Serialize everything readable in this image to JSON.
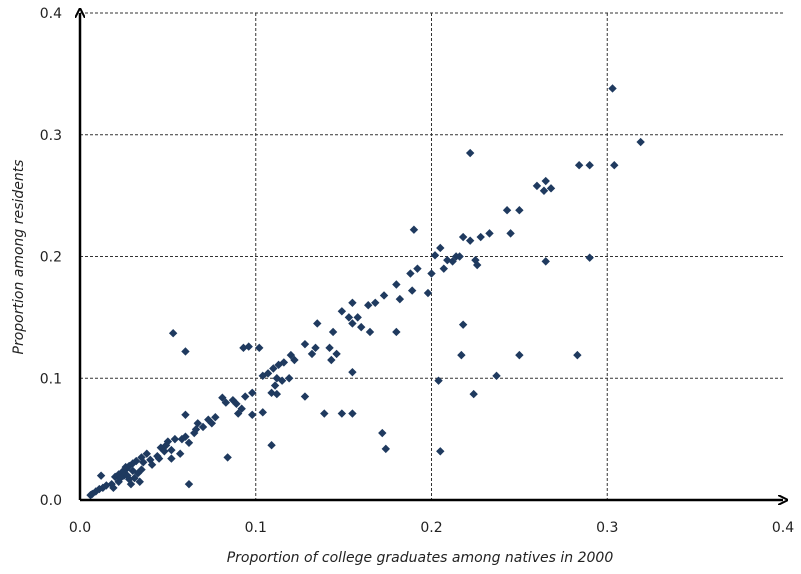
{
  "chart_data": {
    "type": "scatter",
    "title": "",
    "xlabel": "Proportion of college graduates among natives in 2000",
    "ylabel": "Proportion among residents",
    "xlim": [
      0,
      0.4
    ],
    "ylim": [
      0,
      0.4
    ],
    "x_ticks": [
      "0.0",
      "0.1",
      "0.2",
      "0.3",
      "0.4"
    ],
    "y_ticks": [
      "0.0",
      "0.1",
      "0.2",
      "0.3",
      "0.4"
    ],
    "grid": true,
    "marker": "diamond",
    "marker_color": "#1f3a5f",
    "points": [
      [
        0.303,
        0.338
      ],
      [
        0.319,
        0.294
      ],
      [
        0.304,
        0.275
      ],
      [
        0.284,
        0.275
      ],
      [
        0.29,
        0.275
      ],
      [
        0.222,
        0.285
      ],
      [
        0.26,
        0.258
      ],
      [
        0.265,
        0.262
      ],
      [
        0.268,
        0.256
      ],
      [
        0.264,
        0.254
      ],
      [
        0.25,
        0.238
      ],
      [
        0.243,
        0.238
      ],
      [
        0.245,
        0.219
      ],
      [
        0.233,
        0.219
      ],
      [
        0.228,
        0.216
      ],
      [
        0.218,
        0.216
      ],
      [
        0.222,
        0.213
      ],
      [
        0.19,
        0.222
      ],
      [
        0.205,
        0.207
      ],
      [
        0.202,
        0.201
      ],
      [
        0.209,
        0.197
      ],
      [
        0.212,
        0.196
      ],
      [
        0.214,
        0.2
      ],
      [
        0.216,
        0.2
      ],
      [
        0.225,
        0.197
      ],
      [
        0.226,
        0.193
      ],
      [
        0.265,
        0.196
      ],
      [
        0.29,
        0.199
      ],
      [
        0.207,
        0.19
      ],
      [
        0.2,
        0.186
      ],
      [
        0.192,
        0.19
      ],
      [
        0.188,
        0.186
      ],
      [
        0.18,
        0.177
      ],
      [
        0.189,
        0.172
      ],
      [
        0.182,
        0.165
      ],
      [
        0.198,
        0.17
      ],
      [
        0.173,
        0.168
      ],
      [
        0.168,
        0.162
      ],
      [
        0.164,
        0.16
      ],
      [
        0.155,
        0.162
      ],
      [
        0.149,
        0.155
      ],
      [
        0.153,
        0.15
      ],
      [
        0.158,
        0.15
      ],
      [
        0.155,
        0.145
      ],
      [
        0.16,
        0.142
      ],
      [
        0.135,
        0.145
      ],
      [
        0.144,
        0.138
      ],
      [
        0.165,
        0.138
      ],
      [
        0.18,
        0.138
      ],
      [
        0.218,
        0.144
      ],
      [
        0.053,
        0.137
      ],
      [
        0.06,
        0.122
      ],
      [
        0.093,
        0.125
      ],
      [
        0.096,
        0.126
      ],
      [
        0.102,
        0.125
      ],
      [
        0.134,
        0.125
      ],
      [
        0.132,
        0.12
      ],
      [
        0.128,
        0.128
      ],
      [
        0.142,
        0.125
      ],
      [
        0.146,
        0.12
      ],
      [
        0.143,
        0.115
      ],
      [
        0.12,
        0.119
      ],
      [
        0.122,
        0.115
      ],
      [
        0.116,
        0.113
      ],
      [
        0.113,
        0.111
      ],
      [
        0.11,
        0.108
      ],
      [
        0.107,
        0.104
      ],
      [
        0.104,
        0.102
      ],
      [
        0.112,
        0.1
      ],
      [
        0.119,
        0.1
      ],
      [
        0.115,
        0.098
      ],
      [
        0.111,
        0.094
      ],
      [
        0.109,
        0.088
      ],
      [
        0.112,
        0.087
      ],
      [
        0.128,
        0.085
      ],
      [
        0.155,
        0.105
      ],
      [
        0.217,
        0.119
      ],
      [
        0.25,
        0.119
      ],
      [
        0.283,
        0.119
      ],
      [
        0.237,
        0.102
      ],
      [
        0.204,
        0.098
      ],
      [
        0.224,
        0.087
      ],
      [
        0.098,
        0.088
      ],
      [
        0.094,
        0.085
      ],
      [
        0.087,
        0.082
      ],
      [
        0.081,
        0.084
      ],
      [
        0.083,
        0.08
      ],
      [
        0.089,
        0.079
      ],
      [
        0.092,
        0.075
      ],
      [
        0.09,
        0.071
      ],
      [
        0.098,
        0.07
      ],
      [
        0.104,
        0.072
      ],
      [
        0.139,
        0.071
      ],
      [
        0.149,
        0.071
      ],
      [
        0.155,
        0.071
      ],
      [
        0.06,
        0.07
      ],
      [
        0.077,
        0.068
      ],
      [
        0.075,
        0.063
      ],
      [
        0.07,
        0.06
      ],
      [
        0.066,
        0.058
      ],
      [
        0.065,
        0.055
      ],
      [
        0.06,
        0.052
      ],
      [
        0.058,
        0.05
      ],
      [
        0.062,
        0.047
      ],
      [
        0.054,
        0.05
      ],
      [
        0.05,
        0.048
      ],
      [
        0.049,
        0.045
      ],
      [
        0.046,
        0.043
      ],
      [
        0.052,
        0.041
      ],
      [
        0.057,
        0.038
      ],
      [
        0.052,
        0.034
      ],
      [
        0.044,
        0.036
      ],
      [
        0.038,
        0.038
      ],
      [
        0.035,
        0.035
      ],
      [
        0.04,
        0.033
      ],
      [
        0.036,
        0.031
      ],
      [
        0.032,
        0.032
      ],
      [
        0.03,
        0.03
      ],
      [
        0.028,
        0.028
      ],
      [
        0.026,
        0.025
      ],
      [
        0.024,
        0.023
      ],
      [
        0.022,
        0.021
      ],
      [
        0.02,
        0.019
      ],
      [
        0.025,
        0.02
      ],
      [
        0.03,
        0.024
      ],
      [
        0.033,
        0.022
      ],
      [
        0.031,
        0.018
      ],
      [
        0.028,
        0.017
      ],
      [
        0.022,
        0.015
      ],
      [
        0.018,
        0.013
      ],
      [
        0.015,
        0.012
      ],
      [
        0.013,
        0.01
      ],
      [
        0.011,
        0.009
      ],
      [
        0.009,
        0.007
      ],
      [
        0.007,
        0.005
      ],
      [
        0.006,
        0.004
      ],
      [
        0.012,
        0.02
      ],
      [
        0.019,
        0.01
      ],
      [
        0.034,
        0.015
      ],
      [
        0.029,
        0.013
      ],
      [
        0.062,
        0.013
      ],
      [
        0.084,
        0.035
      ],
      [
        0.109,
        0.045
      ],
      [
        0.172,
        0.055
      ],
      [
        0.174,
        0.042
      ],
      [
        0.205,
        0.04
      ],
      [
        0.026,
        0.027
      ],
      [
        0.027,
        0.02
      ],
      [
        0.035,
        0.025
      ],
      [
        0.023,
        0.018
      ],
      [
        0.041,
        0.029
      ],
      [
        0.045,
        0.034
      ],
      [
        0.048,
        0.04
      ],
      [
        0.067,
        0.063
      ],
      [
        0.073,
        0.066
      ]
    ]
  }
}
